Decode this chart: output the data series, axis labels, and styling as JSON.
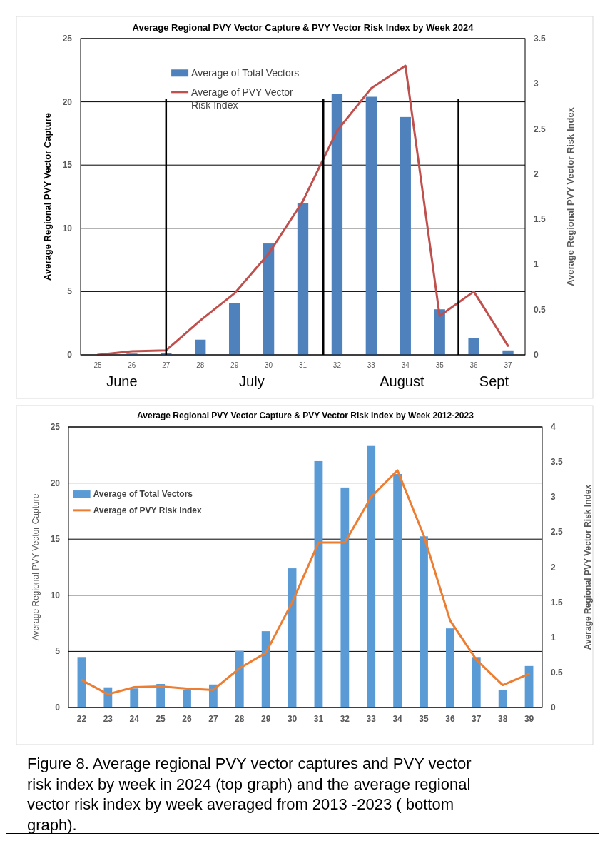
{
  "chart_data": [
    {
      "type": "bar",
      "title": "Average Regional PVY Vector Capture & PVY Vector Risk Index by Week 2024",
      "ylabel": "Average Regional PVY Vector Capture",
      "y2label": "Average Regional PVY Vector Risk Index",
      "x": [
        25,
        26,
        27,
        28,
        29,
        30,
        31,
        32,
        33,
        34,
        35,
        36,
        37
      ],
      "xlim": [
        24.5,
        37.5
      ],
      "xticks": [
        25,
        26,
        27,
        28,
        29,
        30,
        31,
        32,
        33,
        34,
        35,
        36,
        37
      ],
      "ylim": [
        0,
        25
      ],
      "yticks": [
        0,
        5,
        10,
        15,
        20,
        25
      ],
      "y2lim": [
        0,
        3.5
      ],
      "y2ticks": [
        0,
        0.5,
        1,
        1.5,
        2,
        2.5,
        3,
        3.5
      ],
      "series": [
        {
          "name": "Average of Total Vectors",
          "color": "#4f81bd",
          "values": [
            0,
            0.1,
            0.15,
            1.2,
            4.1,
            8.8,
            12.0,
            20.6,
            20.4,
            18.8,
            3.6,
            1.3,
            0.35
          ]
        },
        {
          "name": "Average of PVY Vector Risk Index",
          "type": "line",
          "axis": "y2",
          "color": "#c0504d",
          "values": [
            0,
            0.04,
            0.05,
            0.38,
            0.68,
            1.12,
            1.7,
            2.48,
            2.95,
            3.2,
            0.43,
            0.7,
            0.1
          ]
        }
      ],
      "ref_lines": [
        {
          "axis": "x",
          "value": 27,
          "color": "#000000"
        },
        {
          "axis": "x",
          "value": 31.6,
          "color": "#000000"
        },
        {
          "axis": "x",
          "value": 35.55,
          "color": "#000000"
        }
      ],
      "annotations": [
        "June",
        "July",
        "August",
        "Sept"
      ],
      "grid": "y",
      "legend": "top left",
      "marker": "none",
      "line_style": "solid"
    },
    {
      "type": "bar",
      "title": "Average Regional PVY Vector Capture & PVY Vector Risk Index by Week 2012-2023",
      "ylabel": "Average Regional PVY Vector Capture",
      "y2label": "Average Regional PVY Vector Risk Index",
      "categories": [
        "22",
        "23",
        "24",
        "25",
        "26",
        "27",
        "28",
        "29",
        "30",
        "31",
        "32",
        "33",
        "34",
        "35",
        "36",
        "37",
        "38",
        "39"
      ],
      "ylim": [
        0,
        25
      ],
      "yticks": [
        0,
        5,
        10,
        15,
        20,
        25
      ],
      "y2lim": [
        0,
        4
      ],
      "y2ticks": [
        0,
        0.5,
        1,
        1.5,
        2,
        2.5,
        3,
        3.5,
        4
      ],
      "series": [
        {
          "name": "Average of Total Vectors",
          "color": "#5b9bd5",
          "values": [
            4.5,
            1.8,
            1.7,
            2.1,
            1.6,
            2.05,
            5.05,
            6.8,
            12.4,
            21.95,
            19.6,
            23.3,
            20.8,
            15.25,
            7.05,
            4.5,
            1.55,
            3.7
          ]
        },
        {
          "name": "Average of PVY Risk Index",
          "type": "line",
          "axis": "y2",
          "color": "#ed7d31",
          "values": [
            0.39,
            0.19,
            0.29,
            0.3,
            0.27,
            0.25,
            0.56,
            0.78,
            1.5,
            2.35,
            2.35,
            3.0,
            3.38,
            2.45,
            1.24,
            0.68,
            0.32,
            0.48
          ]
        }
      ],
      "annotations": [
        "Figure 8.   Average regional PVY vector captures and PVY vector risk index by week in 2024 (top graph) and the average regional vector risk index by week averaged from 2013        -2023 ( bottom graph)."
      ],
      "grid": "y",
      "legend": "top left",
      "marker": "none",
      "line_style": "solid"
    }
  ]
}
